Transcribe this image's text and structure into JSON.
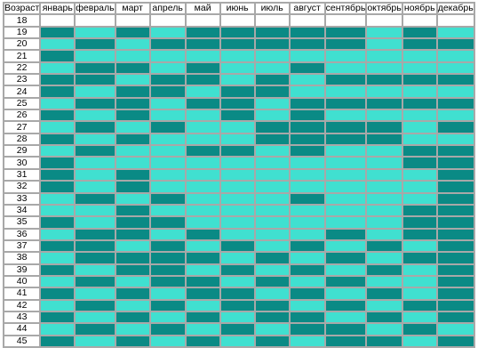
{
  "colors": {
    "dark": "#0a8a85",
    "light": "#40e0d0",
    "header_bg": "#ffffff",
    "border": "#a8a8a8"
  },
  "table": {
    "age_header": "Возраст",
    "months": [
      "январь",
      "февраль",
      "март",
      "апрель",
      "май",
      "июнь",
      "июль",
      "август",
      "сентябрь",
      "октябрь",
      "ноябрь",
      "декабрь"
    ],
    "rows": [
      {
        "age": "18",
        "cells": [
          "",
          "",
          "",
          "",
          "",
          "",
          "",
          "",
          "",
          "",
          "",
          ""
        ]
      },
      {
        "age": "19",
        "cells": [
          "D",
          "L",
          "D",
          "L",
          "D",
          "D",
          "D",
          "D",
          "D",
          "L",
          "D",
          "L"
        ]
      },
      {
        "age": "20",
        "cells": [
          "L",
          "D",
          "L",
          "D",
          "D",
          "D",
          "D",
          "D",
          "D",
          "L",
          "D",
          "D"
        ]
      },
      {
        "age": "21",
        "cells": [
          "D",
          "L",
          "L",
          "L",
          "L",
          "L",
          "L",
          "L",
          "L",
          "L",
          "L",
          "L"
        ]
      },
      {
        "age": "22",
        "cells": [
          "L",
          "D",
          "D",
          "L",
          "D",
          "L",
          "L",
          "D",
          "L",
          "L",
          "L",
          "L"
        ]
      },
      {
        "age": "23",
        "cells": [
          "D",
          "D",
          "L",
          "D",
          "D",
          "L",
          "D",
          "L",
          "D",
          "D",
          "D",
          "D"
        ]
      },
      {
        "age": "24",
        "cells": [
          "D",
          "L",
          "D",
          "D",
          "L",
          "D",
          "D",
          "L",
          "L",
          "L",
          "L",
          "L"
        ]
      },
      {
        "age": "25",
        "cells": [
          "L",
          "D",
          "D",
          "L",
          "D",
          "D",
          "L",
          "D",
          "D",
          "D",
          "D",
          "D"
        ]
      },
      {
        "age": "26",
        "cells": [
          "D",
          "L",
          "D",
          "L",
          "L",
          "D",
          "L",
          "D",
          "L",
          "L",
          "L",
          "L"
        ]
      },
      {
        "age": "27",
        "cells": [
          "L",
          "D",
          "L",
          "D",
          "L",
          "L",
          "D",
          "D",
          "D",
          "D",
          "L",
          "D"
        ]
      },
      {
        "age": "28",
        "cells": [
          "D",
          "L",
          "D",
          "L",
          "L",
          "L",
          "D",
          "D",
          "D",
          "D",
          "L",
          "L"
        ]
      },
      {
        "age": "29",
        "cells": [
          "L",
          "D",
          "L",
          "L",
          "D",
          "D",
          "L",
          "D",
          "L",
          "L",
          "D",
          "D"
        ]
      },
      {
        "age": "30",
        "cells": [
          "D",
          "L",
          "L",
          "L",
          "L",
          "L",
          "L",
          "L",
          "L",
          "L",
          "D",
          "D"
        ]
      },
      {
        "age": "31",
        "cells": [
          "D",
          "L",
          "D",
          "L",
          "L",
          "L",
          "L",
          "L",
          "L",
          "L",
          "L",
          "D"
        ]
      },
      {
        "age": "32",
        "cells": [
          "D",
          "L",
          "D",
          "L",
          "L",
          "L",
          "L",
          "L",
          "L",
          "L",
          "L",
          "D"
        ]
      },
      {
        "age": "33",
        "cells": [
          "L",
          "D",
          "L",
          "D",
          "L",
          "L",
          "L",
          "D",
          "L",
          "L",
          "L",
          "D"
        ]
      },
      {
        "age": "34",
        "cells": [
          "L",
          "L",
          "D",
          "L",
          "L",
          "L",
          "L",
          "L",
          "L",
          "L",
          "D",
          "D"
        ]
      },
      {
        "age": "35",
        "cells": [
          "D",
          "L",
          "D",
          "D",
          "L",
          "L",
          "L",
          "L",
          "L",
          "L",
          "D",
          "D"
        ]
      },
      {
        "age": "36",
        "cells": [
          "L",
          "D",
          "D",
          "L",
          "D",
          "L",
          "L",
          "L",
          "D",
          "L",
          "D",
          "D"
        ]
      },
      {
        "age": "37",
        "cells": [
          "D",
          "D",
          "L",
          "D",
          "L",
          "D",
          "L",
          "D",
          "L",
          "D",
          "L",
          "D"
        ]
      },
      {
        "age": "38",
        "cells": [
          "L",
          "D",
          "D",
          "D",
          "D",
          "L",
          "D",
          "L",
          "D",
          "L",
          "D",
          "D"
        ]
      },
      {
        "age": "39",
        "cells": [
          "D",
          "L",
          "D",
          "D",
          "L",
          "D",
          "L",
          "D",
          "L",
          "D",
          "L",
          "D"
        ]
      },
      {
        "age": "40",
        "cells": [
          "L",
          "D",
          "L",
          "D",
          "D",
          "L",
          "D",
          "L",
          "D",
          "L",
          "L",
          "D"
        ]
      },
      {
        "age": "41",
        "cells": [
          "D",
          "L",
          "D",
          "L",
          "D",
          "D",
          "L",
          "D",
          "L",
          "D",
          "L",
          "D"
        ]
      },
      {
        "age": "42",
        "cells": [
          "L",
          "D",
          "L",
          "D",
          "L",
          "D",
          "D",
          "L",
          "D",
          "L",
          "D",
          "D"
        ]
      },
      {
        "age": "43",
        "cells": [
          "D",
          "L",
          "D",
          "L",
          "D",
          "L",
          "D",
          "D",
          "L",
          "D",
          "L",
          "D"
        ]
      },
      {
        "age": "44",
        "cells": [
          "L",
          "D",
          "L",
          "D",
          "L",
          "D",
          "L",
          "D",
          "D",
          "L",
          "D",
          "L"
        ]
      },
      {
        "age": "45",
        "cells": [
          "D",
          "L",
          "D",
          "L",
          "D",
          "L",
          "D",
          "L",
          "D",
          "D",
          "L",
          "D"
        ]
      }
    ]
  }
}
